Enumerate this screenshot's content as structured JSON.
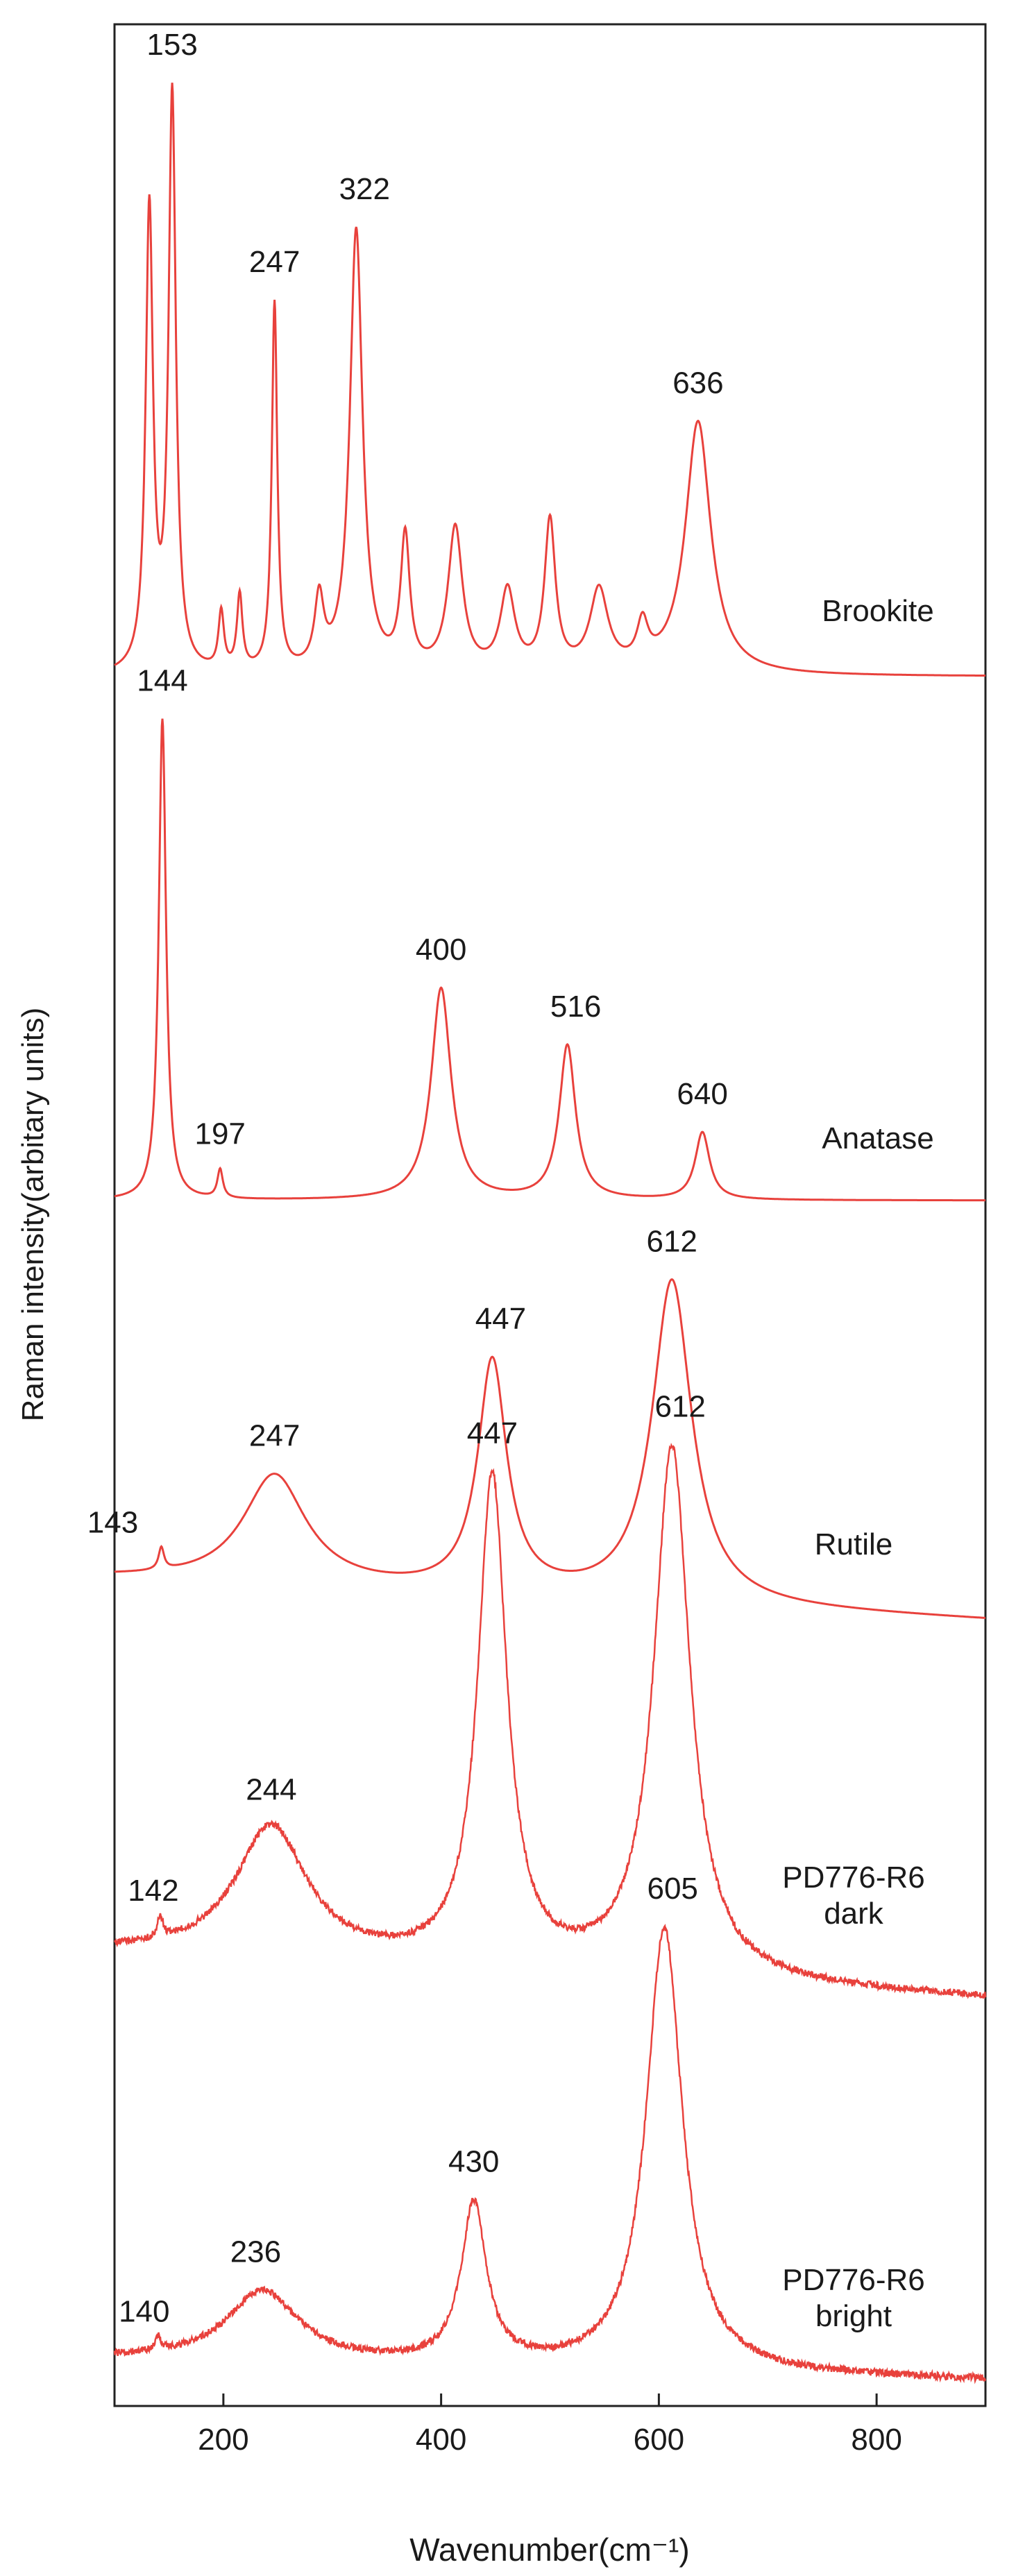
{
  "chart_data": {
    "type": "line",
    "xlabel": "Wavenumber(cm⁻¹)",
    "ylabel": "Raman intensity(arbitary units)",
    "xlim": [
      100,
      900
    ],
    "xticks": [
      200,
      400,
      600,
      800
    ],
    "line_color": "#e8413c",
    "grid": false,
    "series": [
      {
        "name": "Brookite",
        "peaks": [
          {
            "x": 132,
            "h": 0.8,
            "w": 4
          },
          {
            "x": 153,
            "h": 1.0,
            "w": 4
          },
          {
            "x": 198,
            "h": 0.1,
            "w": 3
          },
          {
            "x": 215,
            "h": 0.13,
            "w": 3
          },
          {
            "x": 247,
            "h": 0.64,
            "w": 3
          },
          {
            "x": 288,
            "h": 0.12,
            "w": 5
          },
          {
            "x": 322,
            "h": 0.77,
            "w": 7
          },
          {
            "x": 367,
            "h": 0.23,
            "w": 5
          },
          {
            "x": 413,
            "h": 0.25,
            "w": 8
          },
          {
            "x": 461,
            "h": 0.14,
            "w": 8
          },
          {
            "x": 500,
            "h": 0.26,
            "w": 6
          },
          {
            "x": 545,
            "h": 0.14,
            "w": 10
          },
          {
            "x": 585,
            "h": 0.07,
            "w": 6
          },
          {
            "x": 636,
            "h": 0.44,
            "w": 14
          }
        ],
        "peak_labels": [
          "153",
          "247",
          "322",
          "636"
        ]
      },
      {
        "name": "Anatase",
        "peaks": [
          {
            "x": 144,
            "h": 1.0,
            "w": 4
          },
          {
            "x": 197,
            "h": 0.06,
            "w": 3
          },
          {
            "x": 400,
            "h": 0.44,
            "w": 11
          },
          {
            "x": 516,
            "h": 0.32,
            "w": 9
          },
          {
            "x": 640,
            "h": 0.14,
            "w": 8
          }
        ],
        "peak_labels": [
          "144",
          "197",
          "400",
          "516",
          "640"
        ]
      },
      {
        "name": "Rutile",
        "peaks": [
          {
            "x": 143,
            "h": 0.06,
            "w": 3
          },
          {
            "x": 247,
            "h": 0.3,
            "w": 35
          },
          {
            "x": 447,
            "h": 0.63,
            "w": 16
          },
          {
            "x": 612,
            "h": 0.88,
            "w": 22
          }
        ],
        "peak_labels": [
          "143",
          "247",
          "447",
          "612"
        ]
      },
      {
        "name": "PD776-R6 dark",
        "peaks": [
          {
            "x": 142,
            "h": 0.04,
            "w": 3
          },
          {
            "x": 244,
            "h": 0.25,
            "w": 40
          },
          {
            "x": 447,
            "h": 0.92,
            "w": 16
          },
          {
            "x": 612,
            "h": 1.0,
            "w": 20
          }
        ],
        "peak_labels": [
          "142",
          "244",
          "447",
          "612"
        ]
      },
      {
        "name": "PD776-R6 bright",
        "peaks": [
          {
            "x": 140,
            "h": 0.03,
            "w": 3
          },
          {
            "x": 236,
            "h": 0.16,
            "w": 40
          },
          {
            "x": 430,
            "h": 0.36,
            "w": 14
          },
          {
            "x": 605,
            "h": 1.0,
            "w": 20
          }
        ],
        "peak_labels": [
          "140",
          "236",
          "430",
          "605"
        ]
      }
    ]
  }
}
